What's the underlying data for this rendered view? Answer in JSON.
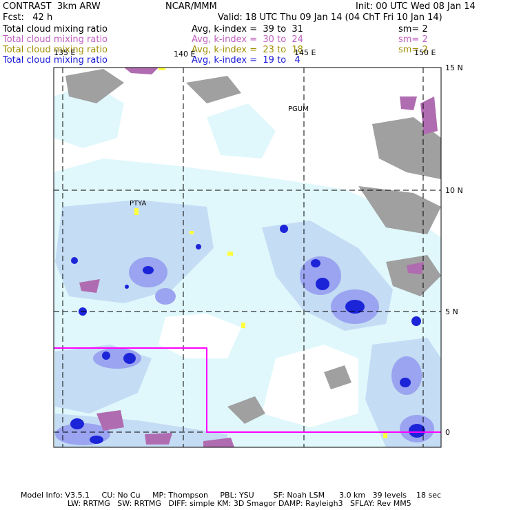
{
  "header": {
    "model": "CONTRAST  3km ARW",
    "center": "NCAR/MMM",
    "init": "Init: 00 UTC Wed 08 Jan 14",
    "fcst": "Fcst:   42 h",
    "valid": "Valid: 18 UTC Thu 09 Jan 14 (04 ChT Fri 10 Jan 14)"
  },
  "legend": [
    {
      "field": "Total cloud mixing ratio",
      "stat": "Avg, k-index =  39 to  31",
      "sm": "sm= 2",
      "color": "#000000"
    },
    {
      "field": "Total cloud mixing ratio",
      "stat": "Avg, k-index =  30 to  24",
      "sm": "sm= 2",
      "color": "#c060c0"
    },
    {
      "field": "Total cloud mixing ratio",
      "stat": "Avg, k-index =  23 to  18",
      "sm": "sm= 2",
      "color": "#a09000"
    },
    {
      "field": "Total cloud mixing ratio",
      "stat": "Avg, k-index =  19 to   4",
      "sm": "",
      "color": "#1818d8"
    }
  ],
  "map": {
    "lon_labels": [
      "135 E",
      "140 E",
      "145 E",
      "150 E"
    ],
    "lat_labels": [
      "15 N",
      "10 N",
      "5 N",
      "0"
    ],
    "stations": [
      "PGUM",
      "PTYA"
    ]
  },
  "footer": {
    "line1": "Model Info: V3.5.1     CU: No Cu     MP: Thompson     PBL: YSU        SF: Noah LSM      3.0 km   39 levels    18 sec",
    "line2": "LW: RRTMG   SW: RRTMG   DIFF: simple KM: 3D Smagor DAMP: Rayleigh3   SFLAY: Rev MM5"
  },
  "colors": {
    "light_cyan": "#e0f8fc",
    "light_blue": "#c4dcf4",
    "mid_blue": "#9aa4f0",
    "blue": "#6a72e6",
    "deep_blue": "#1c24d8",
    "gray": "#a0a0a0",
    "purple": "#b06cb0",
    "yellow": "#ffff40",
    "magenta_box": "#ff00ff"
  }
}
